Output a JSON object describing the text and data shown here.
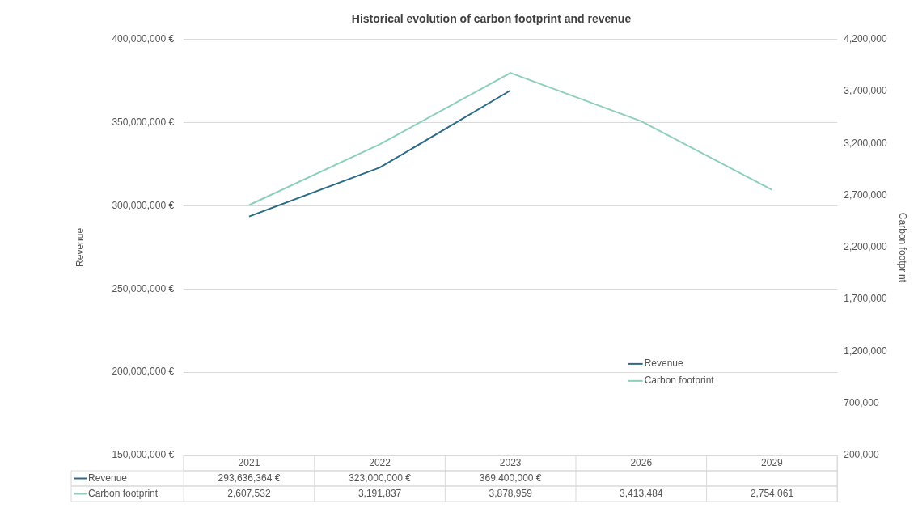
{
  "chart_data": {
    "type": "line",
    "title": "Historical evolution of carbon footprint and revenue",
    "ylabel": "Revenue",
    "y2label": "Carbon footprint",
    "categories": [
      "2021",
      "2022",
      "2023",
      "2026",
      "2029"
    ],
    "series": [
      {
        "name": "Revenue",
        "color": "#2b6a89",
        "values": [
          293636364,
          323000000,
          369400000,
          null,
          null
        ],
        "value_labels": [
          "293,636,364 €",
          "323,000,000 €",
          "369,400,000 €",
          null,
          null
        ]
      },
      {
        "name": "Carbon footprint",
        "color": "#8ecfba",
        "axis": "y2",
        "values": [
          2607532,
          3191837,
          3878959,
          3413484,
          2754061
        ],
        "value_labels": [
          "2,607,532",
          "3,191,837",
          "3,878,959",
          "3,413,484",
          "2,754,061"
        ]
      }
    ],
    "ylim": [
      150000000,
      400000000
    ],
    "yticks": [
      {
        "value": 150000000,
        "label": "150,000,000 €"
      },
      {
        "value": 200000000,
        "label": "200,000,000 €"
      },
      {
        "value": 250000000,
        "label": "250,000,000 €"
      },
      {
        "value": 300000000,
        "label": "300,000,000 €"
      },
      {
        "value": 350000000,
        "label": "350,000,000 €"
      },
      {
        "value": 400000000,
        "label": "400,000,000 €"
      }
    ],
    "y2lim": [
      200000,
      4200000
    ],
    "y2ticks": [
      {
        "value": 200000,
        "label": "200,000"
      },
      {
        "value": 700000,
        "label": "700,000"
      },
      {
        "value": 1200000,
        "label": "1,200,000"
      },
      {
        "value": 1700000,
        "label": "1,700,000"
      },
      {
        "value": 2200000,
        "label": "2,200,000"
      },
      {
        "value": 2700000,
        "label": "2,700,000"
      },
      {
        "value": 3200000,
        "label": "3,200,000"
      },
      {
        "value": 3700000,
        "label": "3,700,000"
      },
      {
        "value": 4200000,
        "label": "4,200,000"
      }
    ],
    "grid": "y",
    "legend": "bottom right",
    "marker": "none",
    "line_style": "solid"
  }
}
